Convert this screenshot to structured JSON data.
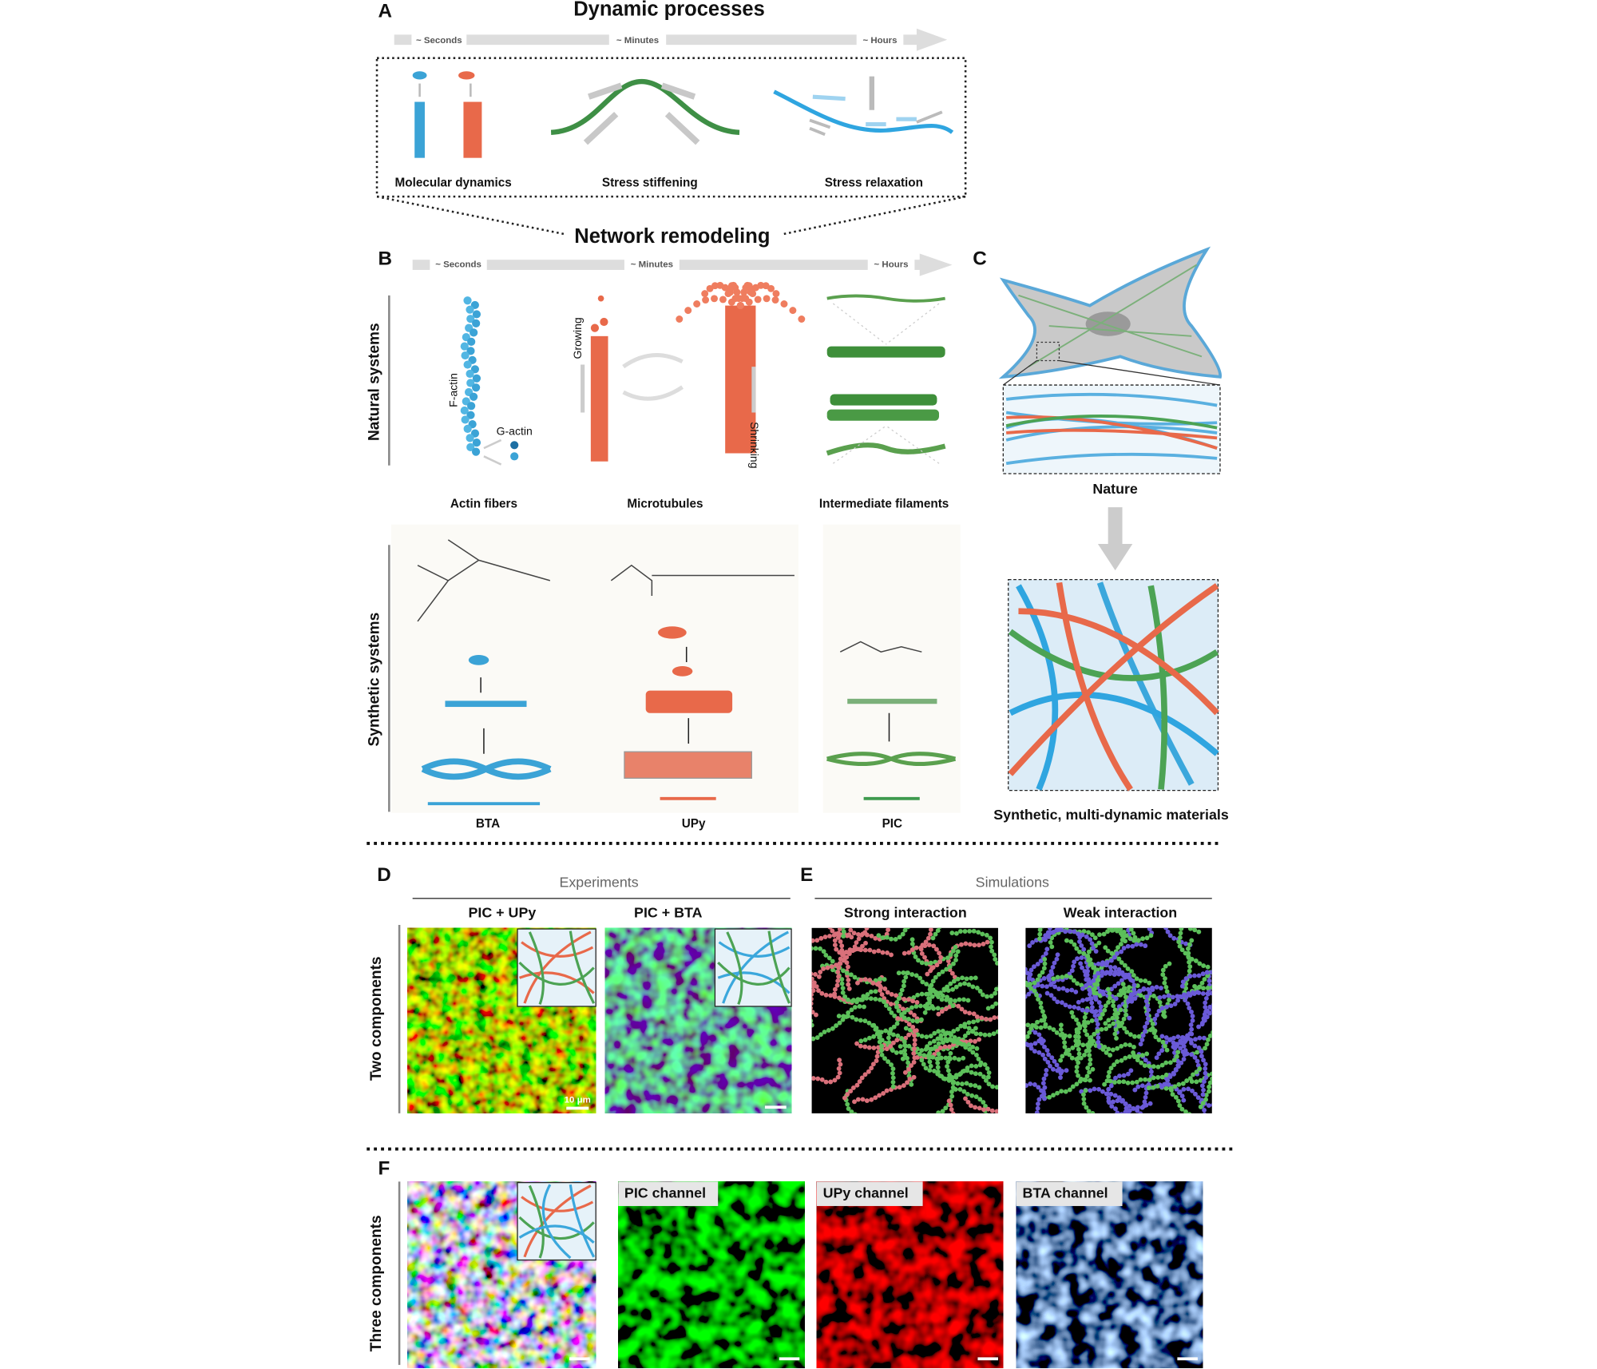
{
  "panel_a": {
    "letter": "A",
    "title": "Dynamic processes",
    "timeline": [
      "~ Seconds",
      "~ Minutes",
      "~ Hours"
    ],
    "items": [
      "Molecular dynamics",
      "Stress stiffening",
      "Stress relaxation"
    ],
    "footer": "Network remodeling"
  },
  "panel_b": {
    "letter": "B",
    "timeline": [
      "~ Seconds",
      "~ Minutes",
      "~ Hours"
    ],
    "row_labels": [
      "Natural systems",
      "Synthetic systems"
    ],
    "drawing_labels": [
      "F-actin",
      "G-actin",
      "Growing",
      "Shrinking"
    ],
    "natural": [
      "Actin fibers",
      "Microtubules",
      "Intermediate filaments"
    ],
    "synthetic": [
      "BTA",
      "UPy",
      "PIC"
    ]
  },
  "panel_c": {
    "letter": "C",
    "nature": "Nature",
    "synthetic": "Synthetic, multi-dynamic materials"
  },
  "panel_d": {
    "letter": "D",
    "heading": "Experiments",
    "row_label": "Two components",
    "images": [
      "PIC + UPy",
      "PIC + BTA"
    ],
    "scale_bar": "10 μm"
  },
  "panel_e": {
    "letter": "E",
    "heading": "Simulations",
    "images": [
      "Strong interaction",
      "Weak interaction"
    ]
  },
  "panel_f": {
    "letter": "F",
    "row_label": "Three components",
    "channels": [
      "PIC channel",
      "UPy channel",
      "BTA channel"
    ]
  }
}
